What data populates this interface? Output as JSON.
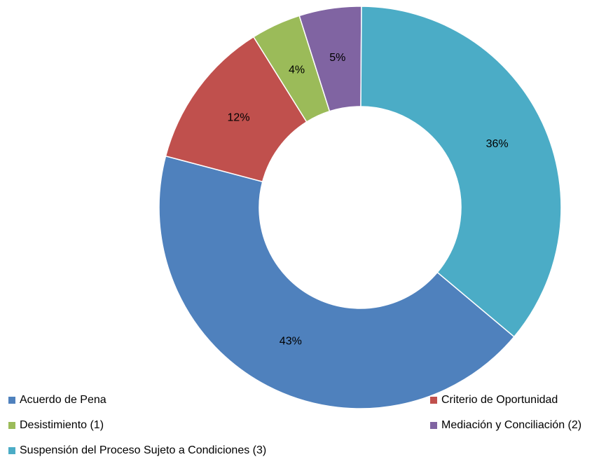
{
  "chart_data": {
    "type": "donut",
    "categories": [
      "Acuerdo de Pena",
      "Criterio de Oportunidad",
      "Desistimiento (1)",
      "Mediación y Conciliación (2)",
      "Suspensión del Proceso Sujeto a Condiciones (3)"
    ],
    "values": [
      43,
      12,
      4,
      5,
      36
    ],
    "value_labels": [
      "43%",
      "12%",
      "4%",
      "5%",
      "36%"
    ],
    "colors": [
      "#4f81bd",
      "#c0504d",
      "#9bbb59",
      "#8064a2",
      "#4bacc6"
    ],
    "start_angle": 130,
    "legend": "bottom"
  }
}
